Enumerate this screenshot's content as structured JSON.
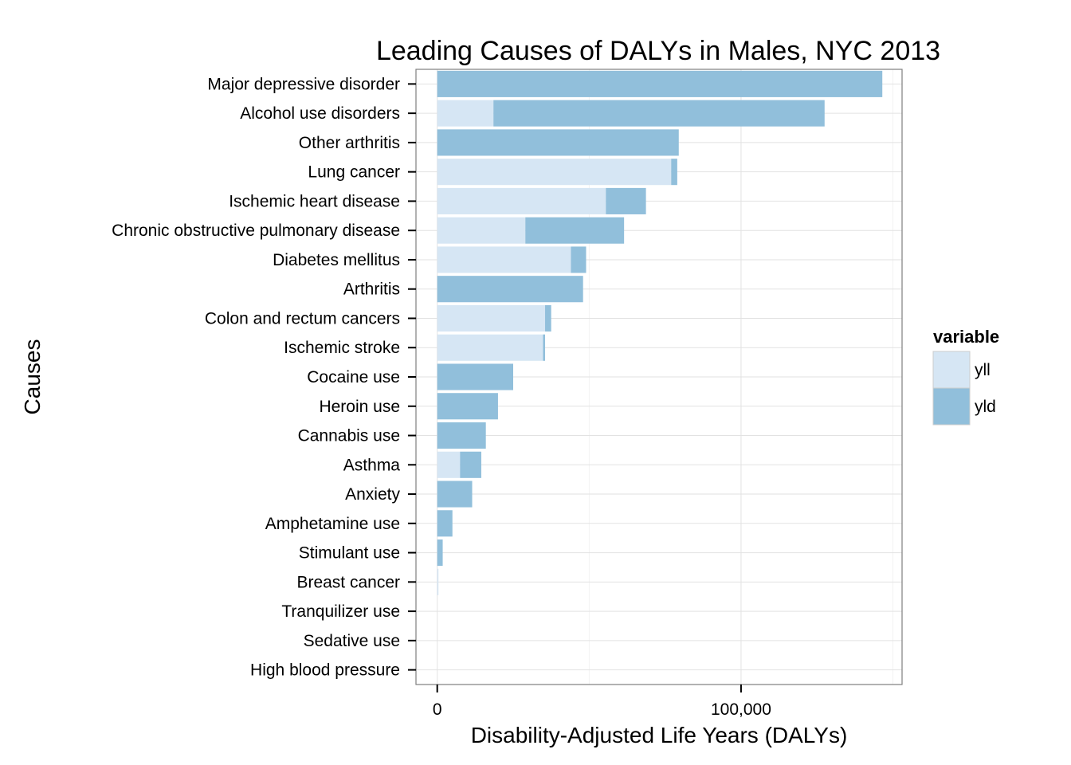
{
  "chart_data": {
    "type": "bar",
    "orientation": "horizontal",
    "stacked": true,
    "title": "Leading Causes of DALYs in Males, NYC 2013",
    "xlabel": "Disability-Adjusted Life Years (DALYs)",
    "ylabel": "Causes",
    "xlim": [
      -7000,
      153000
    ],
    "x_ticks": [
      0,
      100000
    ],
    "x_tick_labels": [
      "0",
      "100,000"
    ],
    "grid": true,
    "legend": {
      "title": "variable",
      "placement": "right"
    },
    "categories": [
      "Major depressive disorder",
      "Alcohol use disorders",
      "Other arthritis",
      "Lung cancer",
      "Ischemic heart disease",
      "Chronic obstructive pulmonary disease",
      "Diabetes mellitus",
      "Arthritis",
      "Colon and rectum cancers",
      "Ischemic stroke",
      "Cocaine use",
      "Heroin use",
      "Cannabis use",
      "Asthma",
      "Anxiety",
      "Amphetamine use",
      "Stimulant use",
      "Breast cancer",
      "Tranquilizer use",
      "Sedative use",
      "High blood pressure"
    ],
    "series": [
      {
        "name": "yll",
        "color": "#d6e6f4",
        "values": [
          0,
          18500,
          0,
          77000,
          55500,
          29000,
          44000,
          0,
          35500,
          34800,
          0,
          0,
          0,
          7500,
          0,
          0,
          0,
          400,
          0,
          0,
          0
        ]
      },
      {
        "name": "yld",
        "color": "#91bfdb",
        "values": [
          146500,
          109000,
          79500,
          2000,
          13200,
          32500,
          5000,
          48000,
          2000,
          700,
          25000,
          20000,
          16000,
          7000,
          11500,
          5000,
          1800,
          0,
          0,
          0,
          0
        ]
      }
    ]
  }
}
